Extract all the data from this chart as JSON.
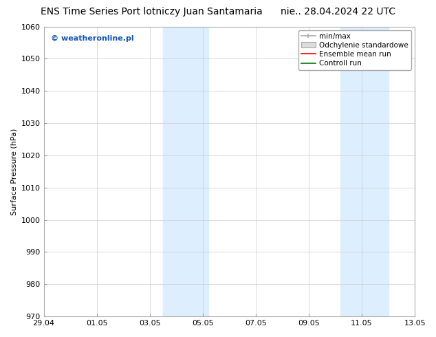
{
  "title": "ENS Time Series Port lotniczy Juan Santamaria      nie.. 28.04.2024 22 UTC",
  "ylabel": "Surface Pressure (hPa)",
  "ylim": [
    970,
    1060
  ],
  "yticks": [
    970,
    980,
    990,
    1000,
    1010,
    1020,
    1030,
    1040,
    1050,
    1060
  ],
  "xtick_labels": [
    "29.04",
    "01.05",
    "03.05",
    "05.05",
    "07.05",
    "09.05",
    "11.05",
    "13.05"
  ],
  "xtick_positions": [
    0,
    2,
    4,
    6,
    8,
    10,
    12,
    14
  ],
  "xlim": [
    0,
    14
  ],
  "shaded_regions": [
    {
      "x_start": 4.5,
      "x_end": 6.2,
      "color": "#ddeeff"
    },
    {
      "x_start": 11.2,
      "x_end": 13.0,
      "color": "#ddeeff"
    }
  ],
  "background_color": "#ffffff",
  "watermark_text": "© weatheronline.pl",
  "watermark_color": "#1155bb",
  "legend_labels": [
    "min/max",
    "Odchylenie standardowe",
    "Ensemble mean run",
    "Controll run"
  ],
  "legend_colors": [
    "#aaaaaa",
    "#cccccc",
    "#ff0000",
    "#007700"
  ],
  "title_fontsize": 10,
  "tick_fontsize": 8,
  "ylabel_fontsize": 8,
  "watermark_fontsize": 8,
  "legend_fontsize": 7.5
}
